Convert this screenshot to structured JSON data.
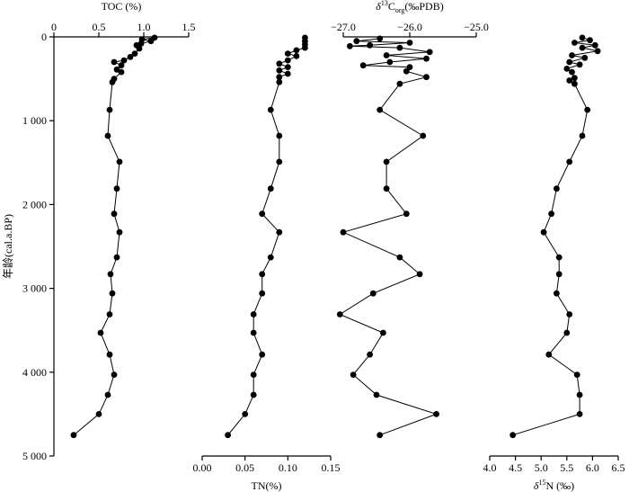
{
  "chart_data": {
    "type": "line",
    "y_axis": {
      "label": "年龄(cal.a.BP)",
      "ticks": [
        0,
        1000,
        2000,
        3000,
        4000,
        5000
      ],
      "tick_labels": [
        "0",
        "1 000",
        "2 000",
        "3 000",
        "4 000",
        "5 000"
      ],
      "range": [
        0,
        5000
      ],
      "inverted": true
    },
    "panels": [
      {
        "name": "toc",
        "axis_title": "TOC (%)",
        "axis_position": "top",
        "xlim": [
          0,
          1.5
        ],
        "ticks": [
          0,
          0.5,
          1.0,
          1.5
        ],
        "tick_labels": [
          "0",
          "0.5",
          "1.0",
          "1.5"
        ],
        "points": [
          {
            "x": 1.12,
            "y": 10
          },
          {
            "x": 0.98,
            "y": 30
          },
          {
            "x": 1.08,
            "y": 50
          },
          {
            "x": 0.97,
            "y": 80
          },
          {
            "x": 0.92,
            "y": 100
          },
          {
            "x": 0.95,
            "y": 140
          },
          {
            "x": 0.9,
            "y": 200
          },
          {
            "x": 0.85,
            "y": 240
          },
          {
            "x": 0.78,
            "y": 280
          },
          {
            "x": 0.67,
            "y": 300
          },
          {
            "x": 0.75,
            "y": 340
          },
          {
            "x": 0.7,
            "y": 390
          },
          {
            "x": 0.75,
            "y": 420
          },
          {
            "x": 0.67,
            "y": 500
          },
          {
            "x": 0.65,
            "y": 540
          },
          {
            "x": 0.62,
            "y": 870
          },
          {
            "x": 0.6,
            "y": 1180
          },
          {
            "x": 0.73,
            "y": 1490
          },
          {
            "x": 0.7,
            "y": 1810
          },
          {
            "x": 0.67,
            "y": 2110
          },
          {
            "x": 0.73,
            "y": 2330
          },
          {
            "x": 0.7,
            "y": 2630
          },
          {
            "x": 0.63,
            "y": 2830
          },
          {
            "x": 0.65,
            "y": 3060
          },
          {
            "x": 0.62,
            "y": 3310
          },
          {
            "x": 0.52,
            "y": 3530
          },
          {
            "x": 0.62,
            "y": 3790
          },
          {
            "x": 0.67,
            "y": 4030
          },
          {
            "x": 0.6,
            "y": 4270
          },
          {
            "x": 0.5,
            "y": 4500
          },
          {
            "x": 0.22,
            "y": 4750
          }
        ]
      },
      {
        "name": "tn",
        "axis_title": "TN(%)",
        "axis_position": "bottom",
        "xlim": [
          0,
          0.15
        ],
        "ticks": [
          0,
          0.05,
          0.1,
          0.15
        ],
        "tick_labels": [
          "0.00",
          "0.05",
          "0.10",
          "0.15"
        ],
        "points": [
          {
            "x": 0.12,
            "y": 10
          },
          {
            "x": 0.12,
            "y": 50
          },
          {
            "x": 0.12,
            "y": 90
          },
          {
            "x": 0.12,
            "y": 130
          },
          {
            "x": 0.11,
            "y": 160
          },
          {
            "x": 0.1,
            "y": 200
          },
          {
            "x": 0.11,
            "y": 230
          },
          {
            "x": 0.1,
            "y": 280
          },
          {
            "x": 0.09,
            "y": 320
          },
          {
            "x": 0.1,
            "y": 360
          },
          {
            "x": 0.09,
            "y": 400
          },
          {
            "x": 0.1,
            "y": 440
          },
          {
            "x": 0.09,
            "y": 480
          },
          {
            "x": 0.09,
            "y": 540
          },
          {
            "x": 0.08,
            "y": 870
          },
          {
            "x": 0.09,
            "y": 1180
          },
          {
            "x": 0.09,
            "y": 1490
          },
          {
            "x": 0.08,
            "y": 1810
          },
          {
            "x": 0.07,
            "y": 2110
          },
          {
            "x": 0.09,
            "y": 2330
          },
          {
            "x": 0.08,
            "y": 2630
          },
          {
            "x": 0.07,
            "y": 2830
          },
          {
            "x": 0.07,
            "y": 3060
          },
          {
            "x": 0.06,
            "y": 3310
          },
          {
            "x": 0.06,
            "y": 3530
          },
          {
            "x": 0.07,
            "y": 3790
          },
          {
            "x": 0.06,
            "y": 4030
          },
          {
            "x": 0.06,
            "y": 4270
          },
          {
            "x": 0.05,
            "y": 4500
          },
          {
            "x": 0.03,
            "y": 4750
          }
        ]
      },
      {
        "name": "d13c",
        "axis_title_parts": {
          "italic": "δ",
          "sup": "13",
          "main": "C",
          "sub": "org",
          "tail": "(‰PDB)"
        },
        "axis_position": "top",
        "xlim": [
          -27.0,
          -25.0
        ],
        "ticks": [
          -27.0,
          -26.0,
          -25.0
        ],
        "tick_labels": [
          "−27.0",
          "−26.0",
          "−25.0"
        ],
        "points": [
          {
            "x": -26.45,
            "y": 20
          },
          {
            "x": -26.8,
            "y": 50
          },
          {
            "x": -26.0,
            "y": 70
          },
          {
            "x": -26.6,
            "y": 100
          },
          {
            "x": -26.9,
            "y": 110
          },
          {
            "x": -26.15,
            "y": 130
          },
          {
            "x": -25.7,
            "y": 180
          },
          {
            "x": -26.35,
            "y": 220
          },
          {
            "x": -25.75,
            "y": 260
          },
          {
            "x": -26.3,
            "y": 300
          },
          {
            "x": -26.7,
            "y": 340
          },
          {
            "x": -26.0,
            "y": 360
          },
          {
            "x": -26.05,
            "y": 410
          },
          {
            "x": -25.75,
            "y": 480
          },
          {
            "x": -26.15,
            "y": 560
          },
          {
            "x": -26.45,
            "y": 870
          },
          {
            "x": -25.8,
            "y": 1180
          },
          {
            "x": -26.35,
            "y": 1490
          },
          {
            "x": -26.35,
            "y": 1810
          },
          {
            "x": -26.05,
            "y": 2110
          },
          {
            "x": -27.0,
            "y": 2330
          },
          {
            "x": -26.15,
            "y": 2630
          },
          {
            "x": -25.85,
            "y": 2830
          },
          {
            "x": -26.55,
            "y": 3060
          },
          {
            "x": -27.05,
            "y": 3310
          },
          {
            "x": -26.4,
            "y": 3530
          },
          {
            "x": -26.6,
            "y": 3790
          },
          {
            "x": -26.85,
            "y": 4030
          },
          {
            "x": -26.5,
            "y": 4270
          },
          {
            "x": -25.6,
            "y": 4500
          },
          {
            "x": -26.45,
            "y": 4750
          }
        ]
      },
      {
        "name": "d15n",
        "axis_title_parts": {
          "italic": "δ",
          "sup": "15",
          "main": "N",
          "sub": "",
          "tail": " (‰)"
        },
        "axis_position": "bottom",
        "xlim": [
          4.0,
          6.5
        ],
        "ticks": [
          4.0,
          4.5,
          5.0,
          5.5,
          6.0,
          6.5
        ],
        "tick_labels": [
          "4.0",
          "4.5",
          "5.0",
          "5.5",
          "6.0",
          "6.5"
        ],
        "points": [
          {
            "x": 5.8,
            "y": 10
          },
          {
            "x": 5.95,
            "y": 40
          },
          {
            "x": 5.65,
            "y": 70
          },
          {
            "x": 6.05,
            "y": 100
          },
          {
            "x": 5.8,
            "y": 130
          },
          {
            "x": 6.1,
            "y": 170
          },
          {
            "x": 5.6,
            "y": 220
          },
          {
            "x": 5.85,
            "y": 250
          },
          {
            "x": 5.55,
            "y": 300
          },
          {
            "x": 5.75,
            "y": 330
          },
          {
            "x": 5.5,
            "y": 380
          },
          {
            "x": 5.6,
            "y": 420
          },
          {
            "x": 5.65,
            "y": 490
          },
          {
            "x": 5.55,
            "y": 520
          },
          {
            "x": 5.65,
            "y": 560
          },
          {
            "x": 5.9,
            "y": 870
          },
          {
            "x": 5.8,
            "y": 1180
          },
          {
            "x": 5.55,
            "y": 1490
          },
          {
            "x": 5.3,
            "y": 1810
          },
          {
            "x": 5.2,
            "y": 2110
          },
          {
            "x": 5.05,
            "y": 2330
          },
          {
            "x": 5.35,
            "y": 2630
          },
          {
            "x": 5.35,
            "y": 2830
          },
          {
            "x": 5.3,
            "y": 3060
          },
          {
            "x": 5.55,
            "y": 3310
          },
          {
            "x": 5.5,
            "y": 3530
          },
          {
            "x": 5.15,
            "y": 3790
          },
          {
            "x": 5.7,
            "y": 4030
          },
          {
            "x": 5.75,
            "y": 4270
          },
          {
            "x": 5.75,
            "y": 4500
          },
          {
            "x": 4.45,
            "y": 4750
          }
        ]
      }
    ]
  }
}
